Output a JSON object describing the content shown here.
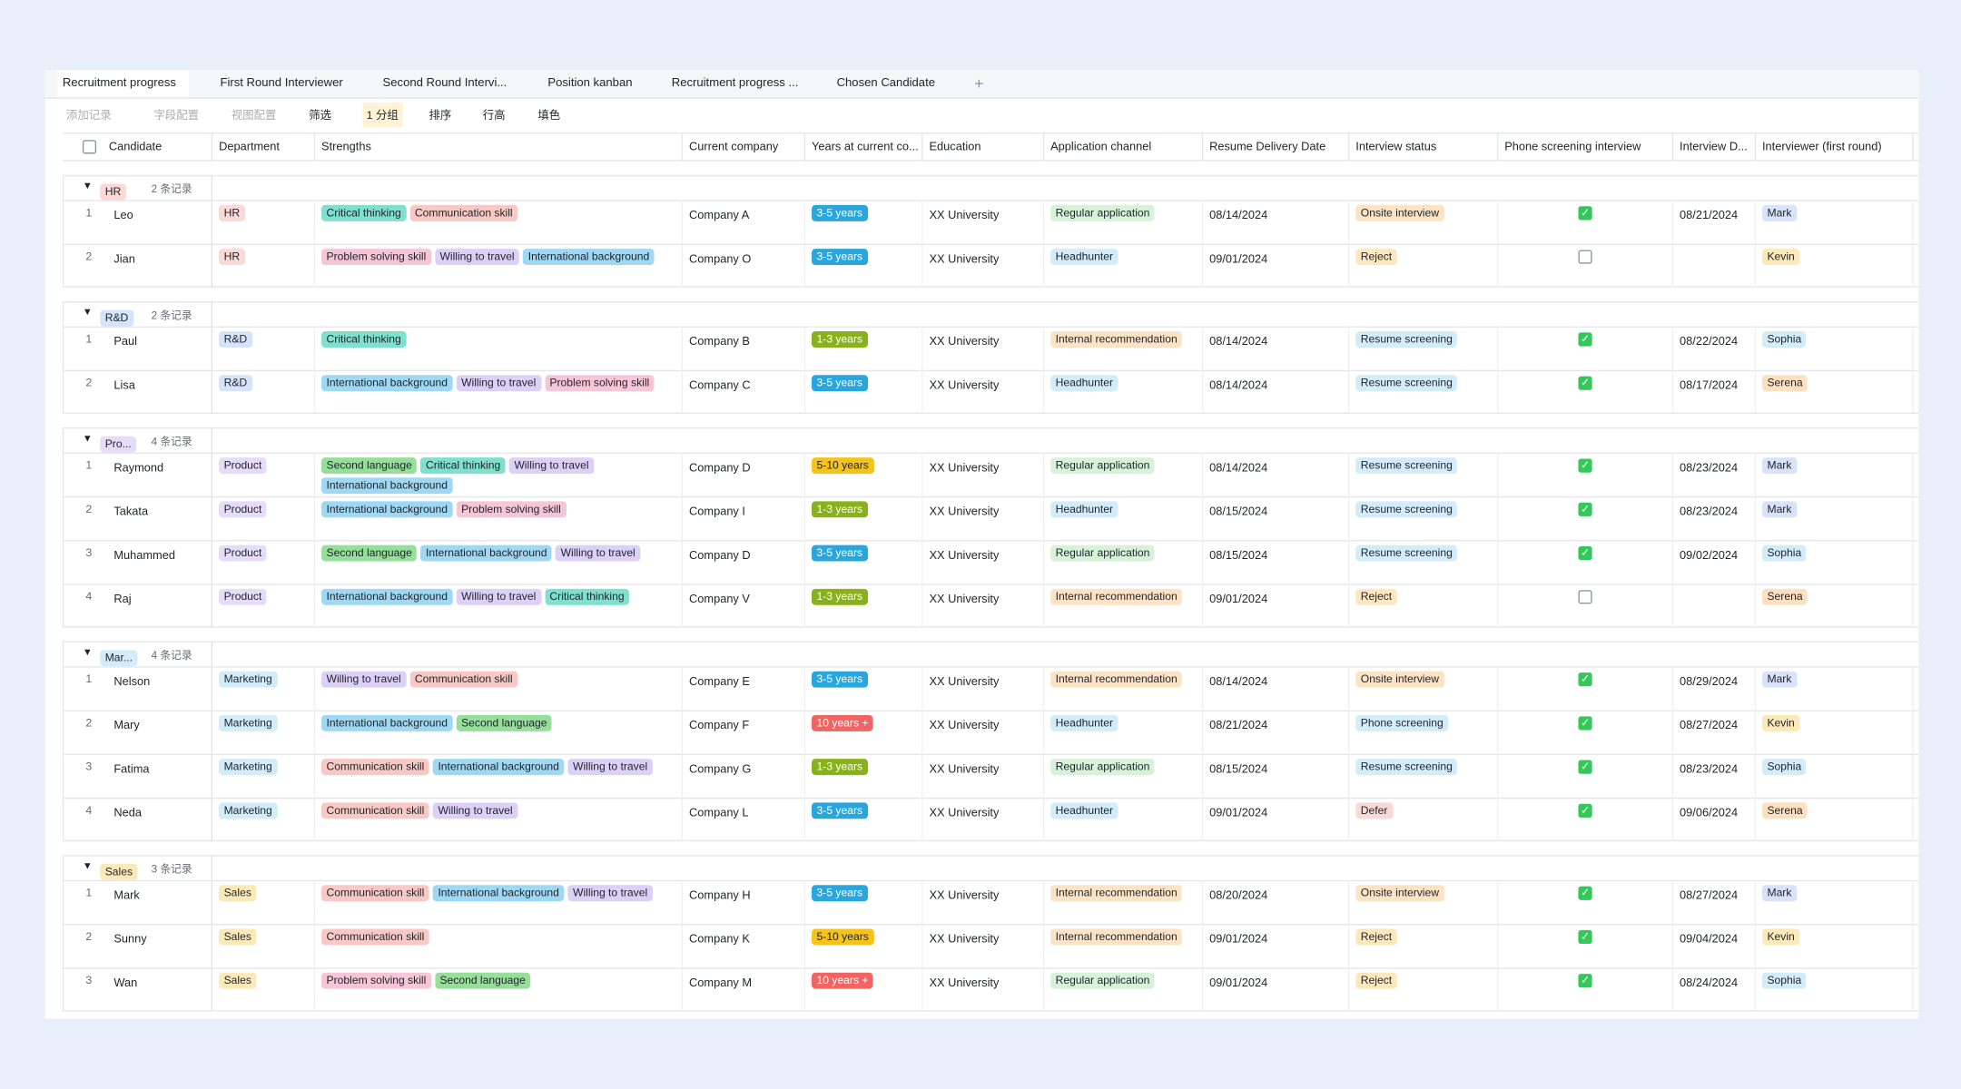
{
  "tabs": [
    "Recruitment progress",
    "First Round Interviewer",
    "Second Round Intervi...",
    "Position kanban",
    "Recruitment progress ...",
    "Chosen Candidate"
  ],
  "toolbar": [
    "添加记录",
    "字段配置",
    "视图配置",
    "筛选",
    "1 分组",
    "排序",
    "行高",
    "填色"
  ],
  "columns": [
    "Candidate",
    "Department",
    "Strengths",
    "Current company",
    "Years at current co...",
    "Education",
    "Application channel",
    "Resume Delivery Date",
    "Interview status",
    "Phone screening interview",
    "Interview D...",
    "Interviewer (first round)"
  ],
  "groups": [
    {
      "name": "HR",
      "count": "2 条记录",
      "rows": [
        {
          "no": 1,
          "candidate": "Leo",
          "department": "HR",
          "strengths": [
            "Critical thinking",
            "Communication skill"
          ],
          "company": "Company A",
          "years": "3-5 years",
          "education": "XX University",
          "channel": "Regular application",
          "delivery_date": "08/14/2024",
          "status": "Onsite interview",
          "phone_screening": true,
          "interview_date": "08/21/2024",
          "interviewer": "Mark"
        },
        {
          "no": 2,
          "candidate": "Jian",
          "department": "HR",
          "strengths": [
            "Problem solving skill",
            "Willing to travel",
            "International background"
          ],
          "company": "Company O",
          "years": "3-5 years",
          "education": "XX University",
          "channel": "Headhunter",
          "delivery_date": "09/01/2024",
          "status": "Reject",
          "phone_screening": false,
          "interview_date": null,
          "interviewer": "Kevin"
        }
      ]
    },
    {
      "name": "R&D",
      "count": "2 条记录",
      "rows": [
        {
          "no": 1,
          "candidate": "Paul",
          "department": "R&D",
          "strengths": [
            "Critical thinking"
          ],
          "company": "Company B",
          "years": "1-3 years",
          "education": "XX University",
          "channel": "Internal recommendation",
          "delivery_date": "08/14/2024",
          "status": "Resume screening",
          "phone_screening": true,
          "interview_date": "08/22/2024",
          "interviewer": "Sophia"
        },
        {
          "no": 2,
          "candidate": "Lisa",
          "department": "R&D",
          "strengths": [
            "International background",
            "Willing to travel",
            "Problem solving skill"
          ],
          "company": "Company C",
          "years": "3-5 years",
          "education": "XX University",
          "channel": "Headhunter",
          "delivery_date": "08/14/2024",
          "status": "Resume screening",
          "phone_screening": true,
          "interview_date": "08/17/2024",
          "interviewer": "Serena"
        }
      ]
    },
    {
      "name": "Pro...",
      "count": "4 条记录",
      "rows": [
        {
          "no": 1,
          "candidate": "Raymond",
          "department": "Product",
          "strengths": [
            "Second language",
            "Critical thinking",
            "Willing to travel",
            "International background"
          ],
          "company": "Company D",
          "years": "5-10 years",
          "education": "XX University",
          "channel": "Regular application",
          "delivery_date": "08/14/2024",
          "status": "Resume screening",
          "phone_screening": true,
          "interview_date": "08/23/2024",
          "interviewer": "Mark"
        },
        {
          "no": 2,
          "candidate": "Takata",
          "department": "Product",
          "strengths": [
            "International background",
            "Problem solving skill"
          ],
          "company": "Company I",
          "years": "1-3 years",
          "education": "XX University",
          "channel": "Headhunter",
          "delivery_date": "08/15/2024",
          "status": "Resume screening",
          "phone_screening": true,
          "interview_date": "08/23/2024",
          "interviewer": "Mark"
        },
        {
          "no": 3,
          "candidate": "Muhammed",
          "department": "Product",
          "strengths": [
            "Second language",
            "International background",
            "Willing to travel"
          ],
          "company": "Company D",
          "years": "3-5 years",
          "education": "XX University",
          "channel": "Regular application",
          "delivery_date": "08/15/2024",
          "status": "Resume screening",
          "phone_screening": true,
          "interview_date": "09/02/2024",
          "interviewer": "Sophia"
        },
        {
          "no": 4,
          "candidate": "Raj",
          "department": "Product",
          "strengths": [
            "International background",
            "Willing to travel",
            "Critical thinking"
          ],
          "company": "Company V",
          "years": "1-3 years",
          "education": "XX University",
          "channel": "Internal recommendation",
          "delivery_date": "09/01/2024",
          "status": "Reject",
          "phone_screening": false,
          "interview_date": null,
          "interviewer": "Serena"
        }
      ]
    },
    {
      "name": "Mar...",
      "count": "4 条记录",
      "rows": [
        {
          "no": 1,
          "candidate": "Nelson",
          "department": "Marketing",
          "strengths": [
            "Willing to travel",
            "Communication skill"
          ],
          "company": "Company E",
          "years": "3-5 years",
          "education": "XX University",
          "channel": "Internal recommendation",
          "delivery_date": "08/14/2024",
          "status": "Onsite interview",
          "phone_screening": true,
          "interview_date": "08/29/2024",
          "interviewer": "Mark"
        },
        {
          "no": 2,
          "candidate": "Mary",
          "department": "Marketing",
          "strengths": [
            "International background",
            "Second language"
          ],
          "company": "Company F",
          "years": "10 years +",
          "education": "XX University",
          "channel": "Headhunter",
          "delivery_date": "08/21/2024",
          "status": "Phone screening",
          "phone_screening": true,
          "interview_date": "08/27/2024",
          "interviewer": "Kevin"
        },
        {
          "no": 3,
          "candidate": "Fatima",
          "department": "Marketing",
          "strengths": [
            "Communication skill",
            "International background",
            "Willing to travel"
          ],
          "company": "Company G",
          "years": "1-3 years",
          "education": "XX University",
          "channel": "Regular application",
          "delivery_date": "08/15/2024",
          "status": "Resume screening",
          "phone_screening": true,
          "interview_date": "08/23/2024",
          "interviewer": "Sophia"
        },
        {
          "no": 4,
          "candidate": "Neda",
          "department": "Marketing",
          "strengths": [
            "Communication skill",
            "Willing to travel"
          ],
          "company": "Company L",
          "years": "3-5 years",
          "education": "XX University",
          "channel": "Headhunter",
          "delivery_date": "09/01/2024",
          "status": "Defer",
          "phone_screening": true,
          "interview_date": "09/06/2024",
          "interviewer": "Serena"
        }
      ]
    },
    {
      "name": "Sales",
      "count": "3 条记录",
      "rows": [
        {
          "no": 1,
          "candidate": "Mark",
          "department": "Sales",
          "strengths": [
            "Communication skill",
            "International background",
            "Willing to travel"
          ],
          "company": "Company H",
          "years": "3-5 years",
          "education": "XX University",
          "channel": "Internal recommendation",
          "delivery_date": "08/20/2024",
          "status": "Onsite interview",
          "phone_screening": true,
          "interview_date": "08/27/2024",
          "interviewer": "Mark"
        },
        {
          "no": 2,
          "candidate": "Sunny",
          "department": "Sales",
          "strengths": [
            "Communication skill"
          ],
          "company": "Company K",
          "years": "5-10 years",
          "education": "XX University",
          "channel": "Internal recommendation",
          "delivery_date": "09/01/2024",
          "status": "Reject",
          "phone_screening": true,
          "interview_date": "09/04/2024",
          "interviewer": "Kevin"
        },
        {
          "no": 3,
          "candidate": "Wan",
          "department": "Sales",
          "strengths": [
            "Problem solving skill",
            "Second language"
          ],
          "company": "Company M",
          "years": "10 years +",
          "education": "XX University",
          "channel": "Regular application",
          "delivery_date": "09/01/2024",
          "status": "Reject",
          "phone_screening": true,
          "interview_date": "08/24/2024",
          "interviewer": "Sophia"
        }
      ]
    }
  ],
  "colors": {
    "HR": "#fbd9d6",
    "R&D": "#d6e4fb",
    "Pro...": "#e6dcf7",
    "Product": "#e6dcf7",
    "Mar...": "#d3ecf9",
    "Marketing": "#d3ecf9",
    "Sales": "#fbeab8",
    "Critical thinking": "#7ee0cd",
    "Communication skill": "#f8c9c4",
    "Problem solving skill": "#f7c6d6",
    "Willing to travel": "#ddd0f7",
    "International background": "#9fd8f3",
    "Second language": "#96df9a",
    "3-5 years": "#2aa6df",
    "1-3 years": "#89b11c",
    "5-10 years": "#f6c31d",
    "10 years +": "#f06563",
    "Regular application": "#d6f2d9",
    "Headhunter": "#d3ecf9",
    "Internal recommendation": "#fde3c6",
    "Onsite interview": "#fde3c6",
    "Reject": "#fde7bf",
    "Resume screening": "#d3ecf9",
    "Phone screening": "#d3ecf9",
    "Defer": "#fbd9d6",
    "Mark": "#d9e2fb",
    "Kevin": "#fbeab8",
    "Sophia": "#d3ecf9",
    "Serena": "#fde0c0"
  }
}
